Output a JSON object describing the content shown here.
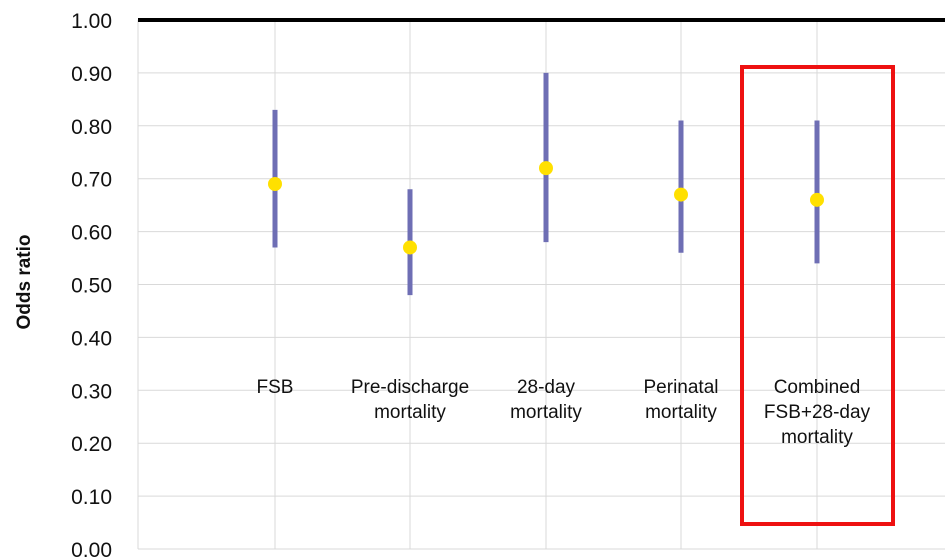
{
  "chart_data": {
    "type": "scatter",
    "ylabel": "Odds ratio",
    "ylim": [
      0,
      1
    ],
    "yticks": [
      "0.00",
      "0.10",
      "0.20",
      "0.30",
      "0.40",
      "0.50",
      "0.60",
      "0.70",
      "0.80",
      "0.90",
      "1.00"
    ],
    "ytick_values": [
      0,
      0.1,
      0.2,
      0.3,
      0.4,
      0.5,
      0.6,
      0.7,
      0.8,
      0.9,
      1.0
    ],
    "grid": true,
    "reference_line": 1.0,
    "categories": [
      [
        "FSB"
      ],
      [
        "Pre-discharge",
        "mortality"
      ],
      [
        "28-day",
        "mortality"
      ],
      [
        "Perinatal",
        "mortality"
      ],
      [
        "Combined",
        "FSB+28-day",
        "mortality"
      ]
    ],
    "estimates": [
      0.69,
      0.57,
      0.72,
      0.67,
      0.66
    ],
    "lower": [
      0.57,
      0.48,
      0.58,
      0.56,
      0.54
    ],
    "upper": [
      0.83,
      0.68,
      0.9,
      0.81,
      0.81
    ],
    "highlighted_category_index": 4,
    "colors": {
      "point": "#FFE000",
      "interval": "#6E6EB4",
      "grid": "#D9D9D9",
      "reference": "#000000",
      "highlight": "#EE1111"
    }
  }
}
